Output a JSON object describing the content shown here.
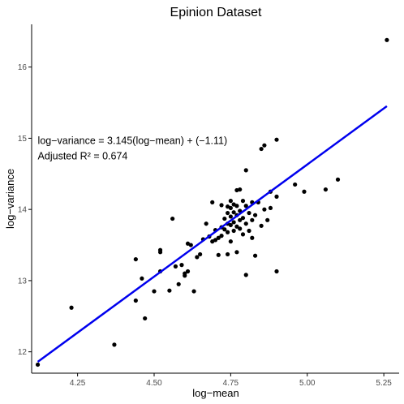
{
  "chart_data": {
    "type": "scatter",
    "title": "Epinion Dataset",
    "xlabel": "log−mean",
    "ylabel": "log−variance",
    "xlim": [
      4.1,
      5.3
    ],
    "ylim": [
      11.7,
      16.6
    ],
    "x_ticks": [
      4.25,
      4.5,
      4.75,
      5.0,
      5.25
    ],
    "x_tick_labels": [
      "4.25",
      "4.50",
      "4.75",
      "5.00",
      "5.25"
    ],
    "y_ticks": [
      12,
      13,
      14,
      15,
      16
    ],
    "y_tick_labels": [
      "12",
      "13",
      "14",
      "15",
      "16"
    ],
    "grid": false,
    "annotations": [
      {
        "text": "log−variance = 3.145(log−mean) + (−1.11)",
        "x": 4.12,
        "y": 14.92
      },
      {
        "text": "Adjusted R² = 0.674",
        "x": 4.12,
        "y": 14.7
      }
    ],
    "fit_line": {
      "x": [
        4.12,
        5.26
      ],
      "y": [
        11.86,
        15.45
      ],
      "color": "#0000ee"
    },
    "point_color": "#000000",
    "points": [
      {
        "x": 4.12,
        "y": 11.82
      },
      {
        "x": 4.23,
        "y": 12.62
      },
      {
        "x": 4.37,
        "y": 12.1
      },
      {
        "x": 4.44,
        "y": 13.3
      },
      {
        "x": 4.44,
        "y": 12.72
      },
      {
        "x": 4.46,
        "y": 13.03
      },
      {
        "x": 4.47,
        "y": 12.47
      },
      {
        "x": 4.5,
        "y": 12.85
      },
      {
        "x": 4.52,
        "y": 13.43
      },
      {
        "x": 4.52,
        "y": 13.4
      },
      {
        "x": 4.52,
        "y": 13.13
      },
      {
        "x": 4.55,
        "y": 12.86
      },
      {
        "x": 4.56,
        "y": 13.87
      },
      {
        "x": 4.57,
        "y": 13.2
      },
      {
        "x": 4.58,
        "y": 12.95
      },
      {
        "x": 4.59,
        "y": 13.22
      },
      {
        "x": 4.6,
        "y": 13.1
      },
      {
        "x": 4.6,
        "y": 13.07
      },
      {
        "x": 4.61,
        "y": 13.52
      },
      {
        "x": 4.61,
        "y": 13.13
      },
      {
        "x": 4.62,
        "y": 13.5
      },
      {
        "x": 4.63,
        "y": 12.85
      },
      {
        "x": 4.64,
        "y": 13.33
      },
      {
        "x": 4.65,
        "y": 13.37
      },
      {
        "x": 4.66,
        "y": 13.58
      },
      {
        "x": 4.67,
        "y": 13.8
      },
      {
        "x": 4.68,
        "y": 13.62
      },
      {
        "x": 4.69,
        "y": 14.1
      },
      {
        "x": 4.69,
        "y": 13.55
      },
      {
        "x": 4.7,
        "y": 13.71
      },
      {
        "x": 4.7,
        "y": 13.57
      },
      {
        "x": 4.71,
        "y": 13.6
      },
      {
        "x": 4.71,
        "y": 13.36
      },
      {
        "x": 4.72,
        "y": 14.06
      },
      {
        "x": 4.72,
        "y": 13.75
      },
      {
        "x": 4.72,
        "y": 13.63
      },
      {
        "x": 4.73,
        "y": 13.87
      },
      {
        "x": 4.73,
        "y": 13.72
      },
      {
        "x": 4.74,
        "y": 14.04
      },
      {
        "x": 4.74,
        "y": 13.95
      },
      {
        "x": 4.74,
        "y": 13.8
      },
      {
        "x": 4.74,
        "y": 13.68
      },
      {
        "x": 4.74,
        "y": 13.37
      },
      {
        "x": 4.75,
        "y": 14.12
      },
      {
        "x": 4.75,
        "y": 14.02
      },
      {
        "x": 4.75,
        "y": 13.9
      },
      {
        "x": 4.75,
        "y": 13.78
      },
      {
        "x": 4.75,
        "y": 13.55
      },
      {
        "x": 4.76,
        "y": 14.07
      },
      {
        "x": 4.76,
        "y": 13.96
      },
      {
        "x": 4.76,
        "y": 13.82
      },
      {
        "x": 4.76,
        "y": 13.7
      },
      {
        "x": 4.77,
        "y": 14.27
      },
      {
        "x": 4.77,
        "y": 14.05
      },
      {
        "x": 4.77,
        "y": 13.92
      },
      {
        "x": 4.77,
        "y": 13.76
      },
      {
        "x": 4.77,
        "y": 13.4
      },
      {
        "x": 4.78,
        "y": 14.28
      },
      {
        "x": 4.78,
        "y": 13.98
      },
      {
        "x": 4.78,
        "y": 13.85
      },
      {
        "x": 4.78,
        "y": 13.73
      },
      {
        "x": 4.79,
        "y": 14.12
      },
      {
        "x": 4.79,
        "y": 13.88
      },
      {
        "x": 4.79,
        "y": 13.65
      },
      {
        "x": 4.8,
        "y": 14.55
      },
      {
        "x": 4.8,
        "y": 14.05
      },
      {
        "x": 4.8,
        "y": 13.8
      },
      {
        "x": 4.8,
        "y": 13.08
      },
      {
        "x": 4.81,
        "y": 13.95
      },
      {
        "x": 4.81,
        "y": 13.7
      },
      {
        "x": 4.82,
        "y": 14.1
      },
      {
        "x": 4.82,
        "y": 13.85
      },
      {
        "x": 4.82,
        "y": 13.6
      },
      {
        "x": 4.83,
        "y": 13.92
      },
      {
        "x": 4.83,
        "y": 13.35
      },
      {
        "x": 4.84,
        "y": 14.1
      },
      {
        "x": 4.85,
        "y": 14.85
      },
      {
        "x": 4.85,
        "y": 13.77
      },
      {
        "x": 4.86,
        "y": 14.9
      },
      {
        "x": 4.86,
        "y": 14.0
      },
      {
        "x": 4.87,
        "y": 13.85
      },
      {
        "x": 4.88,
        "y": 14.25
      },
      {
        "x": 4.88,
        "y": 14.02
      },
      {
        "x": 4.9,
        "y": 14.98
      },
      {
        "x": 4.9,
        "y": 14.18
      },
      {
        "x": 4.9,
        "y": 13.13
      },
      {
        "x": 4.96,
        "y": 14.35
      },
      {
        "x": 4.99,
        "y": 14.25
      },
      {
        "x": 5.06,
        "y": 14.28
      },
      {
        "x": 5.1,
        "y": 14.42
      },
      {
        "x": 5.26,
        "y": 16.38
      }
    ]
  }
}
